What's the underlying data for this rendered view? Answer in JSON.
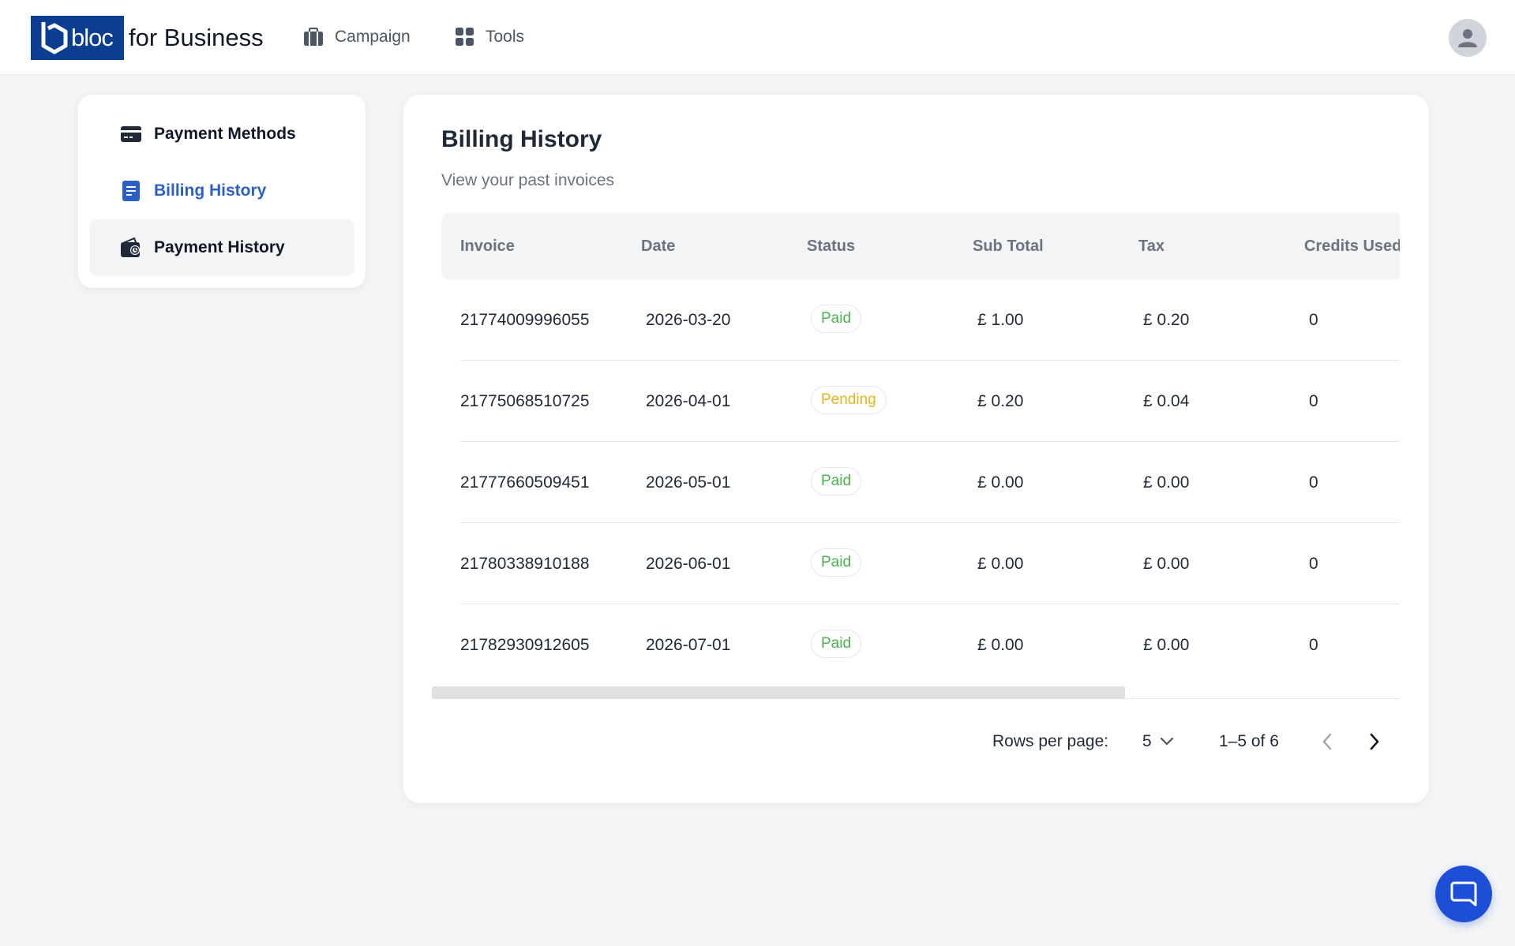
{
  "header": {
    "logo_text": "bloc",
    "logo_suffix": "for Business",
    "nav": [
      {
        "label": "Campaign",
        "icon": "briefcase-icon"
      },
      {
        "label": "Tools",
        "icon": "grid-icon"
      }
    ],
    "avatar_icon": "user-icon"
  },
  "sidebar": {
    "items": [
      {
        "label": "Payment Methods",
        "icon": "credit-card-icon",
        "state": "default"
      },
      {
        "label": "Billing History",
        "icon": "document-icon",
        "state": "active"
      },
      {
        "label": "Payment History",
        "icon": "wallet-icon",
        "state": "hover"
      }
    ]
  },
  "main": {
    "title": "Billing History",
    "subtitle": "View your past invoices",
    "table": {
      "columns": [
        "Invoice",
        "Date",
        "Status",
        "Sub Total",
        "Tax",
        "Credits Used"
      ],
      "rows": [
        {
          "invoice": "21774009996055",
          "date": "2026-03-20",
          "status": "Paid",
          "subtotal": "£ 1.00",
          "tax": "£ 0.20",
          "credits": "0"
        },
        {
          "invoice": "21775068510725",
          "date": "2026-04-01",
          "status": "Pending",
          "subtotal": "£ 0.20",
          "tax": "£ 0.04",
          "credits": "0"
        },
        {
          "invoice": "21777660509451",
          "date": "2026-05-01",
          "status": "Paid",
          "subtotal": "£ 0.00",
          "tax": "£ 0.00",
          "credits": "0"
        },
        {
          "invoice": "21780338910188",
          "date": "2026-06-01",
          "status": "Paid",
          "subtotal": "£ 0.00",
          "tax": "£ 0.00",
          "credits": "0"
        },
        {
          "invoice": "21782930912605",
          "date": "2026-07-01",
          "status": "Paid",
          "subtotal": "£ 0.00",
          "tax": "£ 0.00",
          "credits": "0"
        }
      ]
    },
    "pagination": {
      "rows_per_page_label": "Rows per page:",
      "rows_per_page_value": "5",
      "range": "1–5 of 6"
    }
  },
  "colors": {
    "brand": "#0b3d91",
    "accent": "#2b5fc4",
    "paid": "#4caf50",
    "pending": "#e6b422",
    "chat": "#1d4ed8"
  },
  "chat_icon": "chat-bubble-icon"
}
